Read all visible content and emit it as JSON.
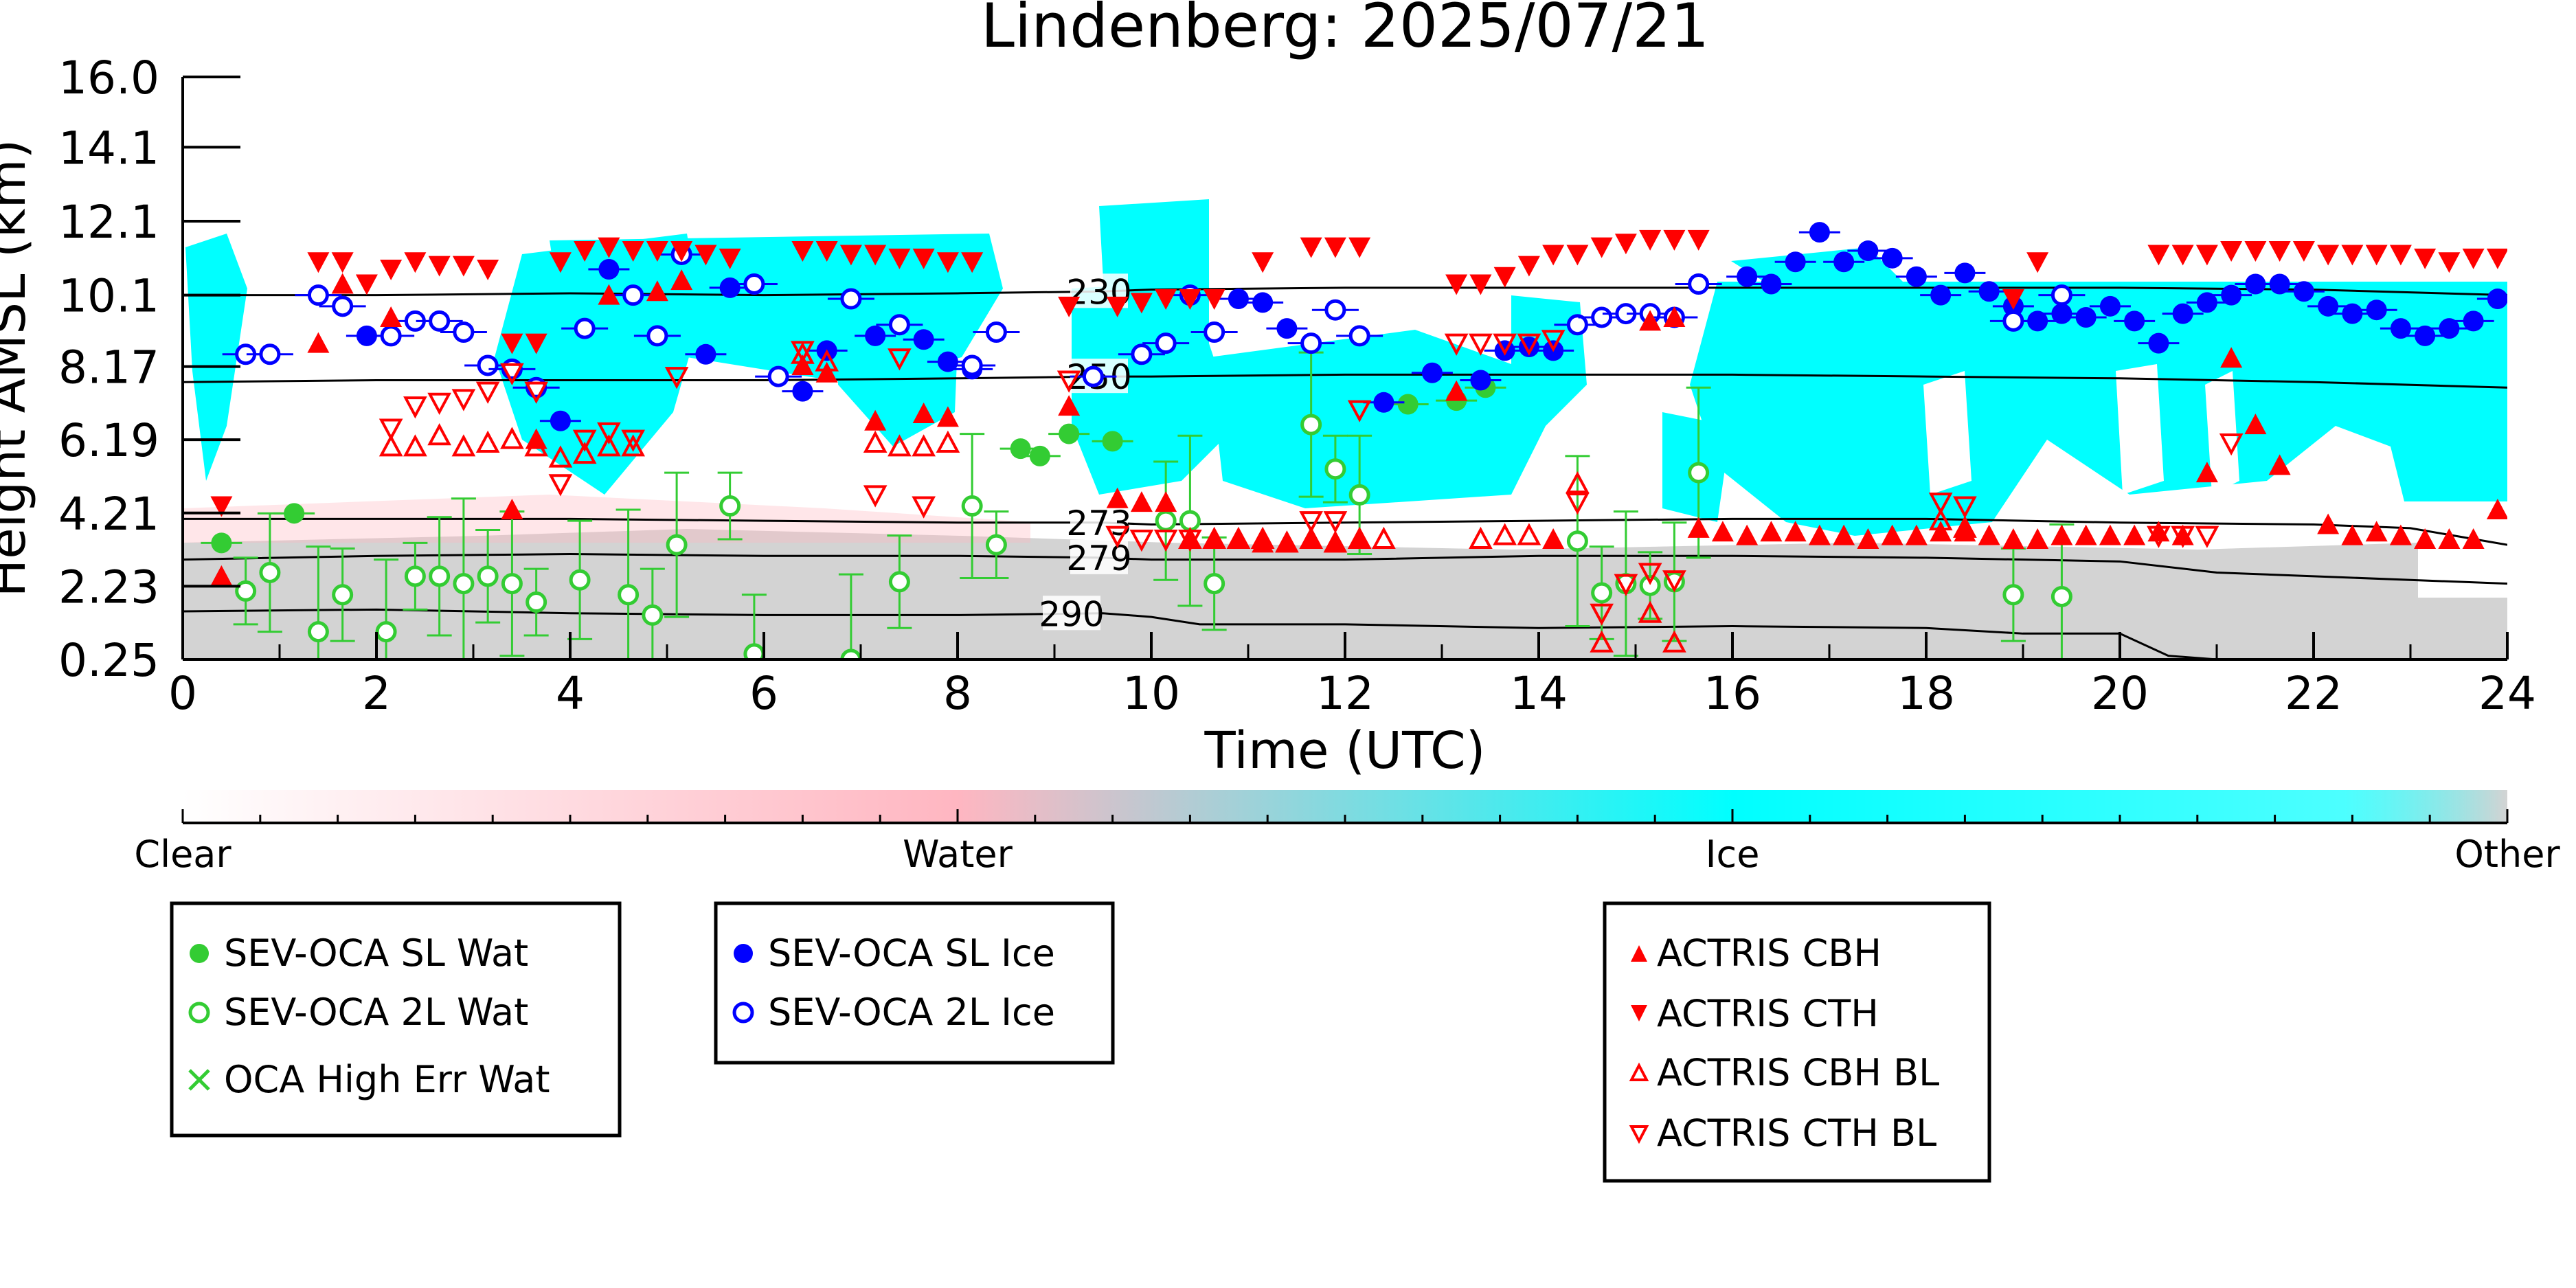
{
  "chart_data": {
    "type": "scatter",
    "title": "Lindenberg: 2025/07/21",
    "xlabel": "Time (UTC)",
    "ylabel": "Height AMSL (km)",
    "xlim": [
      0,
      24
    ],
    "ylim": [
      0.25,
      16.0
    ],
    "x_ticks": [
      "0",
      "2",
      "4",
      "6",
      "8",
      "10",
      "12",
      "14",
      "16",
      "18",
      "20",
      "22",
      "24"
    ],
    "y_ticks": [
      "0.25",
      "2.23",
      "4.21",
      "6.19",
      "8.17",
      "10.1",
      "12.1",
      "14.1",
      "16.0"
    ],
    "colorbar": {
      "labels": [
        "Clear",
        "Water",
        "Ice",
        "Other"
      ],
      "colors": [
        "#ffffff",
        "#ffb6c1",
        "#00ffff",
        "#d3d3d3"
      ]
    },
    "isotherms": [
      {
        "label": "230",
        "x": [
          0,
          2,
          4,
          6,
          8,
          9.5,
          10,
          12,
          14,
          16,
          18,
          20,
          22,
          24
        ],
        "y": [
          10.1,
          10.1,
          10.15,
          10.1,
          10.15,
          10.2,
          10.25,
          10.3,
          10.3,
          10.3,
          10.3,
          10.3,
          10.25,
          10.1
        ]
      },
      {
        "label": "250",
        "x": [
          0,
          2,
          4,
          6,
          8,
          9.5,
          10,
          12,
          14,
          16,
          18,
          20,
          22,
          24
        ],
        "y": [
          7.75,
          7.8,
          7.8,
          7.8,
          7.85,
          7.9,
          7.9,
          7.95,
          7.95,
          7.95,
          7.9,
          7.85,
          7.75,
          7.6
        ]
      },
      {
        "label": "273",
        "x": [
          0,
          2,
          4,
          6,
          8,
          9.5,
          10,
          12,
          14,
          16,
          18,
          20,
          22,
          23,
          24
        ],
        "y": [
          4.05,
          4.05,
          4.05,
          4.0,
          3.95,
          3.95,
          3.9,
          3.95,
          4.0,
          4.05,
          4.05,
          3.95,
          3.9,
          3.8,
          3.35
        ]
      },
      {
        "label": "279",
        "x": [
          0,
          2,
          4,
          6,
          8,
          9.5,
          10,
          12,
          14,
          16,
          18,
          20,
          21,
          22,
          24
        ],
        "y": [
          2.95,
          3.05,
          3.1,
          3.05,
          3.05,
          3.0,
          2.95,
          2.95,
          3.05,
          3.05,
          3.0,
          2.9,
          2.6,
          2.5,
          2.3
        ]
      },
      {
        "label": "290",
        "x": [
          0,
          2,
          4,
          6,
          8,
          9.5,
          10,
          10.5,
          12,
          14,
          16,
          18,
          19,
          20,
          20.5,
          21,
          24
        ],
        "y": [
          1.55,
          1.6,
          1.5,
          1.45,
          1.45,
          1.5,
          1.4,
          1.2,
          1.2,
          1.1,
          1.15,
          1.1,
          0.95,
          0.95,
          0.35,
          0.25,
          0.25
        ]
      }
    ],
    "series": [
      {
        "name": "SEV-OCA SL Wat",
        "color": "#33cc33",
        "marker": "filled-circle",
        "x": [
          0.4,
          1.15,
          8.65,
          8.85,
          9.15,
          9.6,
          12.65,
          13.15,
          13.45
        ],
        "y": [
          3.4,
          4.2,
          5.95,
          5.75,
          6.35,
          6.15,
          7.15,
          7.25,
          7.6
        ]
      },
      {
        "name": "SEV-OCA 2L Wat",
        "color": "#33cc33",
        "marker": "open-circle",
        "x": [
          0.65,
          0.9,
          1.4,
          1.65,
          2.1,
          2.4,
          2.65,
          2.9,
          3.15,
          3.4,
          3.65,
          4.1,
          4.6,
          4.85,
          5.1,
          5.65,
          5.9,
          6.9,
          7.4,
          8.15,
          8.4,
          10.15,
          10.4,
          10.65,
          11.65,
          11.9,
          12.15,
          14.4,
          14.65,
          14.9,
          15.15,
          15.4,
          15.65,
          18.9,
          19.4
        ],
        "y": [
          2.1,
          2.6,
          1.0,
          2.0,
          1.0,
          2.5,
          2.5,
          2.3,
          2.5,
          2.3,
          1.8,
          2.4,
          2.0,
          1.45,
          3.35,
          4.4,
          0.4,
          0.25,
          2.35,
          4.4,
          3.35,
          4.0,
          4.0,
          2.3,
          6.6,
          5.4,
          4.7,
          3.45,
          2.05,
          2.3,
          2.25,
          2.35,
          5.3,
          2.0,
          1.95
        ]
      },
      {
        "name": "OCA High Err Wat",
        "color": "#33cc33",
        "marker": "x",
        "x": [],
        "y": []
      },
      {
        "name": "SEV-OCA SL Ice",
        "color": "#0000ff",
        "marker": "filled-circle",
        "x": [
          1.9,
          3.9,
          4.4,
          5.4,
          5.65,
          6.4,
          6.65,
          7.15,
          7.65,
          7.9,
          8.15,
          10.9,
          11.15,
          11.4,
          12.4,
          12.9,
          13.4,
          13.65,
          13.9,
          14.15,
          16.15,
          16.4,
          16.65,
          16.9,
          17.15,
          17.4,
          17.65,
          17.9,
          18.15,
          18.4,
          18.65,
          18.9,
          19.15,
          19.4,
          19.65,
          19.9,
          20.15,
          20.4,
          20.65,
          20.9,
          21.15,
          21.4,
          21.65,
          21.9,
          22.15,
          22.4,
          22.65,
          22.9,
          23.15,
          23.4,
          23.65,
          23.9
        ],
        "y": [
          9.0,
          6.7,
          10.8,
          8.5,
          10.3,
          7.5,
          8.6,
          9.0,
          8.9,
          8.3,
          8.1,
          10.0,
          9.9,
          9.2,
          7.2,
          8.0,
          7.8,
          8.6,
          8.7,
          8.6,
          10.6,
          10.4,
          11.0,
          11.8,
          11.0,
          11.3,
          11.1,
          10.6,
          10.1,
          10.7,
          10.2,
          9.8,
          9.4,
          9.6,
          9.5,
          9.8,
          9.4,
          8.8,
          9.6,
          9.9,
          10.1,
          10.4,
          10.4,
          10.2,
          9.8,
          9.6,
          9.7,
          9.2,
          9.0,
          9.2,
          9.4,
          10.0
        ]
      },
      {
        "name": "SEV-OCA 2L Ice",
        "color": "#0000ff",
        "marker": "open-circle",
        "x": [
          0.65,
          0.9,
          1.4,
          1.65,
          2.15,
          2.4,
          2.65,
          2.9,
          3.15,
          3.4,
          3.65,
          4.15,
          4.65,
          4.9,
          5.15,
          5.9,
          6.15,
          6.9,
          7.4,
          8.15,
          8.4,
          9.4,
          9.9,
          10.15,
          10.4,
          10.65,
          11.65,
          11.9,
          12.15,
          14.4,
          14.65,
          14.9,
          15.15,
          15.4,
          15.65,
          18.9,
          19.4
        ],
        "y": [
          8.5,
          8.5,
          10.1,
          9.8,
          9.0,
          9.4,
          9.4,
          9.1,
          8.2,
          8.1,
          7.6,
          9.2,
          10.1,
          9.0,
          11.2,
          10.4,
          7.9,
          10.0,
          9.3,
          8.2,
          9.1,
          7.9,
          8.5,
          8.8,
          10.1,
          9.1,
          8.8,
          9.7,
          9.0,
          9.3,
          9.5,
          9.6,
          9.6,
          9.5,
          10.4,
          9.4,
          10.1
        ]
      },
      {
        "name": "ACTRIS CBH",
        "color": "#ff0000",
        "marker": "triangle-up-filled",
        "x": [
          0.4,
          1.4,
          1.65,
          2.15,
          3.4,
          3.65,
          4.4,
          4.9,
          5.15,
          6.4,
          6.65,
          7.15,
          7.65,
          7.9,
          9.15,
          9.65,
          9.9,
          10.15,
          10.4,
          10.65,
          10.9,
          11.15,
          11.4,
          11.65,
          11.9,
          12.15,
          13.15,
          14.15,
          15.15,
          15.4,
          15.65,
          15.9,
          16.15,
          16.4,
          16.65,
          16.9,
          17.15,
          17.4,
          17.65,
          17.9,
          18.15,
          18.4,
          18.65,
          18.9,
          19.15,
          19.4,
          19.65,
          19.9,
          20.15,
          20.4,
          20.65,
          20.9,
          21.15,
          21.4,
          21.65,
          22.15,
          22.4,
          22.65,
          22.9,
          23.15,
          23.4,
          23.65,
          23.9
        ],
        "y": [
          2.5,
          8.8,
          10.4,
          9.5,
          4.3,
          6.2,
          10.1,
          10.2,
          10.5,
          8.2,
          8.0,
          6.7,
          6.9,
          6.8,
          7.1,
          4.6,
          4.5,
          4.5,
          3.5,
          3.5,
          3.5,
          3.4,
          3.4,
          3.5,
          3.4,
          3.5,
          7.5,
          3.5,
          9.4,
          9.5,
          3.8,
          3.7,
          3.6,
          3.7,
          3.7,
          3.6,
          3.6,
          3.5,
          3.6,
          3.6,
          3.7,
          3.7,
          3.6,
          3.5,
          3.5,
          3.6,
          3.6,
          3.6,
          3.6,
          3.7,
          3.6,
          5.3,
          8.4,
          6.6,
          5.5,
          3.9,
          3.6,
          3.7,
          3.6,
          3.5,
          3.5,
          3.5,
          4.3
        ]
      },
      {
        "name": "ACTRIS CTH",
        "color": "#ff0000",
        "marker": "triangle-down-filled",
        "x": [
          0.4,
          1.4,
          1.65,
          1.9,
          2.15,
          2.4,
          2.65,
          2.9,
          3.15,
          3.4,
          3.65,
          3.9,
          4.15,
          4.4,
          4.65,
          4.9,
          5.15,
          5.4,
          5.65,
          6.4,
          6.65,
          6.9,
          7.15,
          7.4,
          7.65,
          7.9,
          8.15,
          9.15,
          9.65,
          9.9,
          10.15,
          10.4,
          10.65,
          11.15,
          11.65,
          11.9,
          12.15,
          13.15,
          13.4,
          13.65,
          13.9,
          14.15,
          14.4,
          14.65,
          14.9,
          15.15,
          15.4,
          15.65,
          18.9,
          19.15,
          20.4,
          20.65,
          20.9,
          21.15,
          21.4,
          21.65,
          21.9,
          22.15,
          22.4,
          22.65,
          22.9,
          23.15,
          23.4,
          23.65,
          23.9
        ],
        "y": [
          4.4,
          11.0,
          11.0,
          10.4,
          10.8,
          11.0,
          10.9,
          10.9,
          10.8,
          8.8,
          8.8,
          11.0,
          11.3,
          11.4,
          11.3,
          11.3,
          11.3,
          11.2,
          11.1,
          11.3,
          11.3,
          11.2,
          11.2,
          11.1,
          11.1,
          11.0,
          11.0,
          9.8,
          9.8,
          9.9,
          10.0,
          10.0,
          10.0,
          11.0,
          11.4,
          11.4,
          11.4,
          10.4,
          10.4,
          10.6,
          10.9,
          11.2,
          11.2,
          11.4,
          11.5,
          11.6,
          11.6,
          11.6,
          10.0,
          11.0,
          11.2,
          11.2,
          11.2,
          11.3,
          11.3,
          11.3,
          11.3,
          11.2,
          11.2,
          11.2,
          11.2,
          11.1,
          11.0,
          11.1,
          11.1
        ]
      },
      {
        "name": "ACTRIS CBH BL",
        "color": "#ff0000",
        "marker": "triangle-up-open",
        "x": [
          2.15,
          2.4,
          2.65,
          2.9,
          3.15,
          3.4,
          3.65,
          3.9,
          4.15,
          4.4,
          4.65,
          6.4,
          6.65,
          7.15,
          7.4,
          7.65,
          7.9,
          10.4,
          10.65,
          10.9,
          11.15,
          11.4,
          11.65,
          11.9,
          12.15,
          12.4,
          13.4,
          13.65,
          13.9,
          14.4,
          14.65,
          15.15,
          15.4,
          18.15,
          18.4
        ],
        "y": [
          6.0,
          6.0,
          6.3,
          6.0,
          6.1,
          6.2,
          6.0,
          5.7,
          5.8,
          6.0,
          6.0,
          8.5,
          8.3,
          6.1,
          6.0,
          6.0,
          6.1,
          3.5,
          3.5,
          3.5,
          3.5,
          3.4,
          3.5,
          3.4,
          3.5,
          3.5,
          3.5,
          3.6,
          3.6,
          5.0,
          0.7,
          1.5,
          0.7,
          4.0,
          3.8
        ]
      },
      {
        "name": "ACTRIS CTH BL",
        "color": "#ff0000",
        "marker": "triangle-down-open",
        "x": [
          2.15,
          2.4,
          2.65,
          2.9,
          3.15,
          3.4,
          3.65,
          3.9,
          4.15,
          4.4,
          4.65,
          5.1,
          6.4,
          7.15,
          7.4,
          7.65,
          9.15,
          9.65,
          9.9,
          10.15,
          10.4,
          11.65,
          11.9,
          12.15,
          13.15,
          13.4,
          13.65,
          13.9,
          14.15,
          14.4,
          14.65,
          14.9,
          15.15,
          15.4,
          18.15,
          18.4,
          20.4,
          20.65,
          20.9,
          21.15
        ],
        "y": [
          6.5,
          7.1,
          7.2,
          7.3,
          7.5,
          8.0,
          7.5,
          5.0,
          6.2,
          6.4,
          6.2,
          7.9,
          8.6,
          4.7,
          8.4,
          4.4,
          7.8,
          3.6,
          3.5,
          3.5,
          3.5,
          4.0,
          4.0,
          7.0,
          8.8,
          8.8,
          8.8,
          8.8,
          8.9,
          4.5,
          1.5,
          2.3,
          2.6,
          2.4,
          4.5,
          4.4,
          3.6,
          3.6,
          3.6,
          6.1
        ]
      }
    ]
  },
  "legend": {
    "water": [
      "SEV-OCA SL Wat",
      "SEV-OCA 2L Wat",
      "OCA High Err Wat"
    ],
    "ice": [
      "SEV-OCA SL Ice",
      "SEV-OCA 2L Ice"
    ],
    "actris": [
      "ACTRIS CBH",
      "ACTRIS CTH",
      "ACTRIS CBH BL",
      "ACTRIS CTH BL"
    ]
  }
}
